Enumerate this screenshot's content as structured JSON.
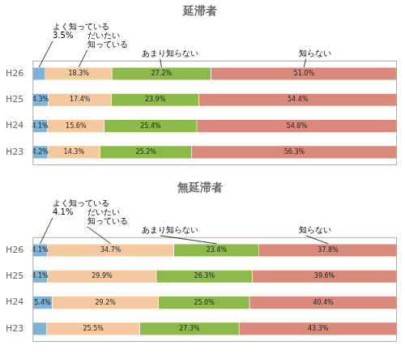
{
  "chart_data": [
    {
      "type": "bar",
      "orientation": "horizontal",
      "stacked": true,
      "title": "延滞者",
      "categories": [
        "H26",
        "H25",
        "H24",
        "H23"
      ],
      "series": [
        {
          "color": "#7FB2D5",
          "values": [
            3.5,
            4.3,
            4.1,
            4.2
          ],
          "value_labels": [
            null,
            "4.3%",
            "4.1%",
            "4.2%"
          ]
        },
        {
          "color": "#F5C8A0",
          "values": [
            18.3,
            17.4,
            15.6,
            14.3
          ],
          "value_labels": [
            "18.3%",
            "17.4%",
            "15.6%",
            "14.3%"
          ]
        },
        {
          "color": "#8DB84A",
          "values": [
            27.2,
            23.9,
            25.4,
            25.2
          ],
          "value_labels": [
            "27.2%",
            "23.9%",
            "25.4%",
            "25.2%"
          ]
        },
        {
          "color": "#D9897A",
          "values": [
            51.0,
            54.4,
            54.8,
            56.3
          ],
          "value_labels": [
            "51.0%",
            "54.4%",
            "54.8%",
            "56.3%"
          ]
        }
      ],
      "xlim": [
        0,
        100
      ],
      "tick_labels": "y",
      "grid": false,
      "data_labels": true,
      "annotations": [
        {
          "text": [
            "よく知っている",
            "3.5%"
          ],
          "category": "H26"
        },
        {
          "text": [
            "だいたい",
            "知っている"
          ],
          "category": "H26"
        },
        {
          "text": [
            "あまり知らない"
          ],
          "category": "H26"
        },
        {
          "text": [
            "知らない"
          ],
          "category": "H26"
        }
      ]
    },
    {
      "type": "bar",
      "orientation": "horizontal",
      "stacked": true,
      "title": "無延滞者",
      "categories": [
        "H26",
        "H25",
        "H24",
        "H23"
      ],
      "series": [
        {
          "color": "#7FB2D5",
          "values": [
            4.1,
            4.1,
            5.4,
            3.9
          ],
          "value_labels": [
            "4.1%",
            "4.1%",
            "5.4%",
            null
          ]
        },
        {
          "color": "#F5C8A0",
          "values": [
            34.7,
            29.9,
            29.2,
            25.5
          ],
          "value_labels": [
            "34.7%",
            "29.9%",
            "29.2%",
            "25.5%"
          ]
        },
        {
          "color": "#8DB84A",
          "values": [
            23.4,
            26.3,
            25.0,
            27.3
          ],
          "value_labels": [
            "23.4%",
            "26.3%",
            "25.0%",
            "27.3%"
          ]
        },
        {
          "color": "#D9897A",
          "values": [
            37.8,
            39.6,
            40.4,
            43.3
          ],
          "value_labels": [
            "37.8%",
            "39.6%",
            "40.4%",
            "43.3%"
          ]
        }
      ],
      "xlim": [
        0,
        100
      ],
      "tick_labels": "y",
      "grid": false,
      "data_labels": true,
      "annotations": [
        {
          "text": [
            "よく知っている",
            "4.1%"
          ],
          "category": "H26"
        },
        {
          "text": [
            "だいたい",
            "知っている"
          ],
          "category": "H26"
        },
        {
          "text": [
            "あまり知らない"
          ],
          "category": "H26"
        },
        {
          "text": [
            "知らない"
          ],
          "category": "H26"
        }
      ]
    }
  ]
}
